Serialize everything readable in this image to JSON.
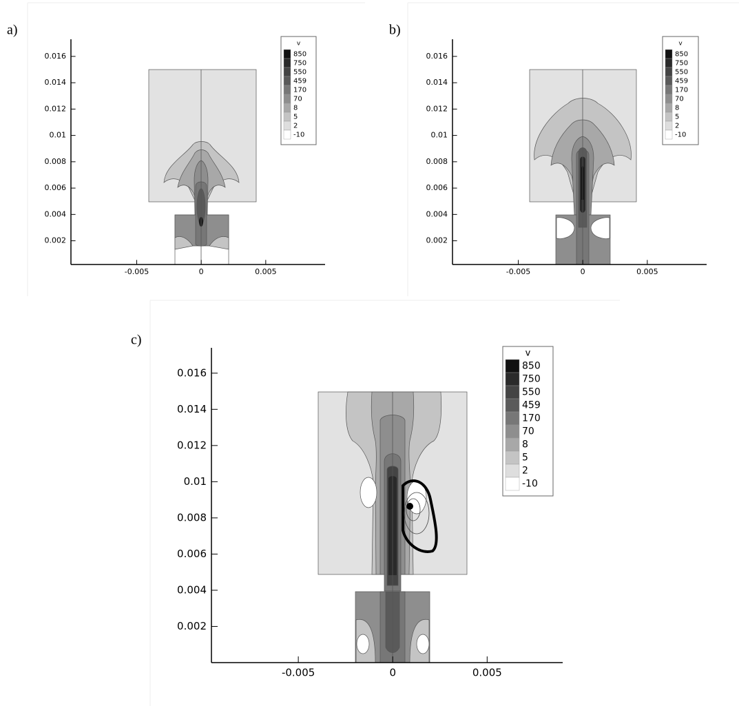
{
  "chart_data": [
    {
      "type": "contour",
      "label": "a)",
      "xlim": [
        -0.0101,
        0.0096
      ],
      "ylim": [
        0.0002,
        0.0173
      ],
      "xticks": [
        -0.005,
        0,
        0.005
      ],
      "yticks": [
        0.002,
        0.004,
        0.006,
        0.008,
        0.01,
        0.012,
        0.014,
        0.016
      ],
      "legend": {
        "title": "v",
        "levels": [
          850,
          750,
          550,
          459,
          170,
          70,
          8,
          5,
          2,
          -10
        ],
        "colors": [
          "#111111",
          "#2a2a2a",
          "#444444",
          "#5a5a5a",
          "#777777",
          "#8e8e8e",
          "#a8a8a8",
          "#c4c4c4",
          "#dedede",
          "#ffffff"
        ]
      }
    },
    {
      "type": "contour",
      "label": "b)",
      "xlim": [
        -0.0101,
        0.0096
      ],
      "ylim": [
        0.0002,
        0.0173
      ],
      "xticks": [
        -0.005,
        0,
        0.005
      ],
      "yticks": [
        0.002,
        0.004,
        0.006,
        0.008,
        0.01,
        0.012,
        0.014,
        0.016
      ],
      "legend": {
        "title": "v",
        "levels": [
          850,
          750,
          550,
          459,
          170,
          70,
          8,
          5,
          2,
          -10
        ],
        "colors": [
          "#111111",
          "#2a2a2a",
          "#444444",
          "#5a5a5a",
          "#777777",
          "#8e8e8e",
          "#a8a8a8",
          "#c4c4c4",
          "#dedede",
          "#ffffff"
        ]
      }
    },
    {
      "type": "contour",
      "label": "c)",
      "xlim": [
        -0.0096,
        0.009
      ],
      "ylim": [
        0,
        0.0174
      ],
      "xticks": [
        -0.005,
        0,
        0.005
      ],
      "yticks": [
        0.002,
        0.004,
        0.006,
        0.008,
        0.01,
        0.012,
        0.014,
        0.016
      ],
      "legend": {
        "title": "v",
        "levels": [
          850,
          750,
          550,
          459,
          170,
          70,
          8,
          5,
          2,
          -10
        ],
        "colors": [
          "#111111",
          "#2a2a2a",
          "#444444",
          "#5a5a5a",
          "#777777",
          "#8e8e8e",
          "#a8a8a8",
          "#c4c4c4",
          "#dedede",
          "#ffffff"
        ]
      }
    }
  ]
}
